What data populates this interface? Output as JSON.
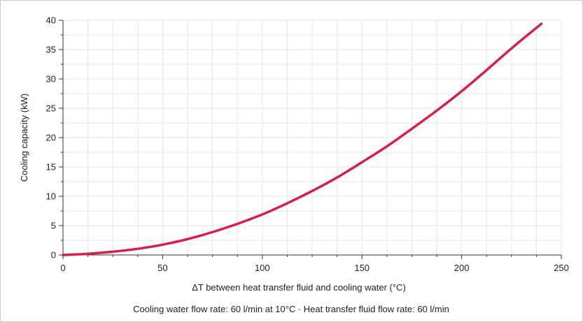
{
  "chart_data": {
    "type": "line",
    "title": "",
    "xlabel": "ΔT between heat transfer fluid and cooling water (°C)",
    "ylabel": "Cooling capacity (kW)",
    "footnote": "Cooling water flow rate: 60 l/min at 10°C · Heat transfer fluid flow rate: 60 l/min",
    "xlim": [
      0,
      250
    ],
    "ylim": [
      0,
      40
    ],
    "x_ticks": [
      0,
      50,
      100,
      150,
      200,
      250
    ],
    "y_ticks": [
      0,
      5,
      10,
      15,
      20,
      25,
      30,
      35,
      40
    ],
    "x_minor_ticks": [
      12.5,
      25,
      37.5,
      62.5,
      75,
      87.5,
      112.5,
      125,
      137.5,
      162.5,
      175,
      187.5,
      212.5,
      225,
      237.5
    ],
    "y_minor_ticks": [
      2.5,
      7.5,
      12.5,
      17.5,
      22.5,
      27.5,
      32.5,
      37.5
    ],
    "grid": true,
    "legend": "none",
    "colors": {
      "line": "#d81e45",
      "grid": "#e6e6e6",
      "axis": "#333333"
    },
    "series": [
      {
        "x": [
          0,
          12.5,
          25,
          37.5,
          50,
          62.5,
          75,
          87.5,
          100,
          112.5,
          125,
          137.5,
          150,
          162.5,
          175,
          187.5,
          200,
          212.5,
          225,
          240
        ],
        "values": [
          0,
          0.2,
          0.55,
          1.05,
          1.75,
          2.7,
          3.9,
          5.3,
          6.9,
          8.8,
          10.9,
          13.2,
          15.8,
          18.5,
          21.5,
          24.6,
          27.9,
          31.5,
          35.2,
          39.4
        ]
      }
    ]
  }
}
